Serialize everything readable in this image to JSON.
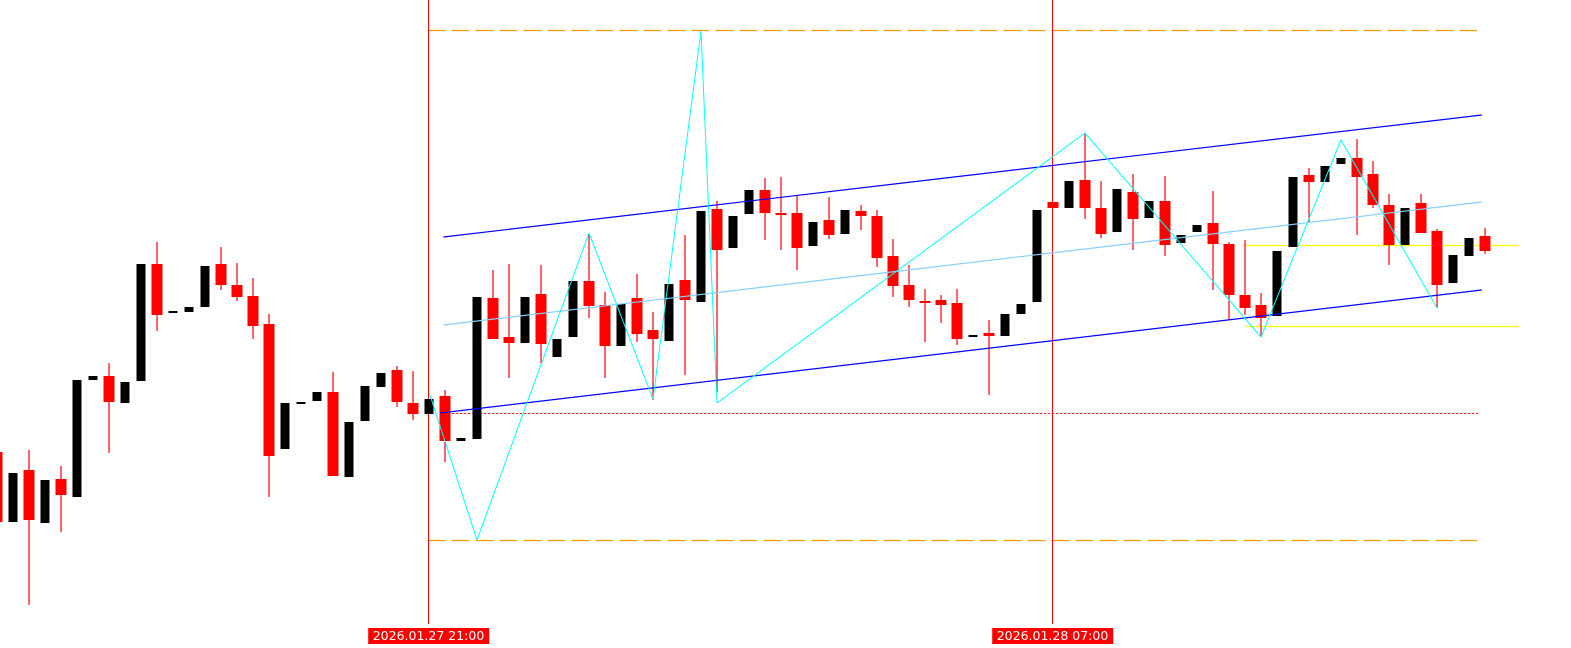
{
  "chart_data": {
    "type": "candlestick",
    "title": "",
    "xlabel": "",
    "ylabel": "",
    "price_axis_shown": false,
    "grid": false,
    "colors": {
      "bull_body": "#000000",
      "bear_body": "#ff0000",
      "bear_wick": "#ff0000",
      "vertical_lines": "#ff0000",
      "orange_levels": "#ff9900",
      "dotted_level": "#ff0000",
      "channel": "#0000ff",
      "channel_mid": "#87cefa",
      "zigzag": "#00ffff",
      "yellow_levels": "#ffff00",
      "time_label_bg": "#ff0000",
      "time_label_text": "#ffffff"
    },
    "candles_ohlc": [
      [
        16.8,
        16.8,
        9.8,
        9.8
      ],
      [
        9.8,
        14.7,
        9.8,
        14.7
      ],
      [
        15.0,
        17.0,
        1.5,
        10.0
      ],
      [
        9.7,
        14.0,
        9.7,
        14.0
      ],
      [
        14.1,
        15.4,
        8.8,
        12.5
      ],
      [
        12.3,
        24.0,
        12.3,
        24.0
      ],
      [
        24.0,
        24.4,
        24.0,
        24.4
      ],
      [
        24.4,
        25.7,
        16.7,
        21.8
      ],
      [
        21.7,
        23.8,
        21.7,
        23.8
      ],
      [
        23.9,
        35.6,
        23.9,
        35.6
      ],
      [
        35.6,
        37.8,
        28.9,
        30.5
      ],
      [
        30.7,
        30.9,
        30.7,
        30.9
      ],
      [
        30.8,
        31.3,
        30.8,
        31.3
      ],
      [
        31.3,
        35.4,
        31.3,
        35.4
      ],
      [
        35.6,
        37.3,
        33.0,
        33.5
      ],
      [
        33.5,
        35.7,
        31.9,
        32.3
      ],
      [
        32.4,
        34.2,
        28.1,
        29.4
      ],
      [
        29.6,
        30.6,
        12.3,
        16.4
      ],
      [
        17.1,
        21.7,
        17.1,
        21.7
      ],
      [
        21.8,
        21.8,
        21.8,
        21.8
      ],
      [
        21.9,
        22.8,
        21.9,
        22.8
      ],
      [
        22.8,
        24.8,
        14.4,
        14.4
      ],
      [
        14.3,
        19.8,
        14.3,
        19.8
      ],
      [
        19.9,
        23.4,
        19.9,
        23.4
      ],
      [
        23.3,
        24.7,
        23.3,
        24.7
      ],
      [
        25.0,
        25.4,
        21.3,
        21.8
      ],
      [
        21.7,
        24.9,
        20.0,
        20.6
      ],
      [
        20.6,
        22.1,
        20.6,
        22.1
      ],
      [
        22.4,
        23.0,
        15.8,
        17.9
      ],
      [
        17.9,
        18.2,
        17.9,
        18.2
      ],
      [
        18.1,
        32.3,
        18.1,
        32.3
      ],
      [
        32.2,
        35.0,
        28.1,
        28.1
      ],
      [
        28.3,
        35.6,
        24.2,
        27.7
      ],
      [
        27.7,
        32.3,
        27.7,
        32.3
      ],
      [
        32.6,
        35.5,
        25.7,
        27.6
      ],
      [
        26.3,
        28.1,
        26.3,
        28.1
      ],
      [
        28.3,
        33.9,
        28.3,
        33.9
      ],
      [
        33.9,
        38.7,
        30.2,
        31.4
      ],
      [
        31.5,
        32.8,
        24.2,
        27.4
      ],
      [
        27.4,
        31.6,
        27.4,
        31.6
      ],
      [
        32.2,
        34.6,
        27.8,
        28.6
      ],
      [
        29.0,
        30.8,
        22.0,
        28.1
      ],
      [
        27.9,
        33.6,
        27.9,
        33.6
      ],
      [
        34.0,
        38.5,
        24.5,
        32.0
      ],
      [
        31.8,
        40.9,
        31.8,
        40.9
      ],
      [
        41.1,
        41.9,
        22.8,
        37.0
      ],
      [
        37.2,
        40.4,
        37.2,
        40.4
      ],
      [
        40.6,
        43.0,
        40.6,
        43.0
      ],
      [
        43.0,
        44.2,
        38.0,
        40.7
      ],
      [
        40.7,
        44.3,
        37.0,
        40.5
      ],
      [
        40.7,
        42.4,
        35.0,
        37.2
      ],
      [
        37.4,
        39.8,
        37.4,
        39.8
      ],
      [
        40.0,
        42.3,
        38.1,
        38.5
      ],
      [
        38.6,
        41.0,
        38.6,
        41.0
      ],
      [
        40.9,
        41.5,
        39.0,
        40.4
      ],
      [
        40.4,
        41.0,
        35.3,
        36.2
      ],
      [
        36.4,
        38.1,
        32.3,
        33.4
      ],
      [
        33.5,
        35.5,
        31.3,
        32.0
      ],
      [
        31.9,
        33.1,
        27.8,
        31.7
      ],
      [
        32.0,
        32.5,
        29.7,
        31.5
      ],
      [
        31.7,
        33.1,
        27.5,
        28.1
      ],
      [
        28.5,
        28.5,
        28.5,
        28.5
      ],
      [
        28.7,
        30.0,
        22.5,
        28.4
      ],
      [
        28.4,
        30.6,
        28.4,
        30.6
      ],
      [
        30.6,
        31.6,
        30.6,
        31.6
      ],
      [
        31.8,
        41.0,
        31.8,
        41.0
      ],
      [
        41.8,
        41.8,
        41.2,
        41.2
      ],
      [
        41.2,
        43.9,
        41.2,
        43.9
      ],
      [
        44.0,
        48.7,
        40.1,
        41.2
      ],
      [
        41.2,
        43.9,
        38.2,
        38.6
      ],
      [
        38.8,
        43.1,
        38.8,
        43.1
      ],
      [
        42.8,
        44.6,
        37.0,
        40.1
      ],
      [
        40.2,
        41.9,
        40.2,
        41.9
      ],
      [
        41.9,
        44.4,
        36.4,
        37.5
      ],
      [
        37.7,
        38.5,
        37.7,
        38.5
      ],
      [
        38.8,
        39.5,
        38.8,
        39.5
      ],
      [
        39.7,
        42.9,
        33.0,
        37.6
      ],
      [
        37.6,
        37.8,
        30.0,
        32.5
      ],
      [
        32.5,
        38.0,
        30.5,
        31.2
      ],
      [
        31.5,
        32.7,
        28.3,
        30.2
      ],
      [
        30.4,
        36.9,
        30.4,
        36.9
      ],
      [
        37.3,
        44.3,
        37.3,
        44.3
      ],
      [
        44.5,
        45.2,
        39.7,
        43.8
      ],
      [
        43.8,
        45.4,
        43.8,
        45.4
      ],
      [
        45.6,
        46.2,
        45.6,
        46.2
      ],
      [
        46.2,
        48.1,
        38.5,
        44.3
      ],
      [
        44.6,
        45.9,
        41.2,
        41.5
      ],
      [
        41.5,
        42.6,
        35.5,
        37.5
      ],
      [
        37.5,
        41.2,
        37.5,
        41.2
      ],
      [
        41.7,
        42.6,
        38.7,
        38.7
      ],
      [
        38.9,
        39.1,
        31.2,
        33.5
      ],
      [
        33.7,
        36.5,
        33.7,
        36.5
      ],
      [
        36.4,
        38.2,
        36.4,
        38.2
      ],
      [
        38.4,
        39.2,
        36.6,
        36.9
      ]
    ],
    "vertical_markers": [
      {
        "bar": 27,
        "label": "2026.01.27 21:00"
      },
      {
        "bar": 66,
        "label": "2026.01.28 07:00"
      }
    ],
    "horizontal_levels": [
      {
        "kind": "orange-dashed",
        "price": 59.0,
        "from_bar": 26.9,
        "to_bar": 92.5
      },
      {
        "kind": "orange-dashed",
        "price": 8.0,
        "from_bar": 26.9,
        "to_bar": 92.5
      },
      {
        "kind": "red-dotted",
        "price": 20.7,
        "from_bar": 27.7,
        "to_bar": 92.6
      },
      {
        "kind": "yellow",
        "price": 37.5,
        "from_bar": 78.0,
        "to_bar": 95.1
      },
      {
        "kind": "yellow",
        "price": 29.4,
        "from_bar": 78.0,
        "to_bar": 95.1
      }
    ],
    "channel": {
      "upper": [
        [
          27.9,
          38.3
        ],
        [
          92.8,
          50.5
        ]
      ],
      "middle": [
        [
          27.9,
          29.5
        ],
        [
          92.8,
          41.8
        ]
      ],
      "lower": [
        [
          27.7,
          20.7
        ],
        [
          92.8,
          33.0
        ]
      ]
    },
    "zigzag": [
      [
        27,
        22.8
      ],
      [
        30,
        8.0
      ],
      [
        37,
        38.7
      ],
      [
        41,
        22.1
      ],
      [
        44,
        58.9
      ],
      [
        45,
        21.7
      ],
      [
        68,
        48.7
      ],
      [
        79,
        28.3
      ],
      [
        84,
        48.0
      ],
      [
        90,
        31.2
      ]
    ]
  }
}
